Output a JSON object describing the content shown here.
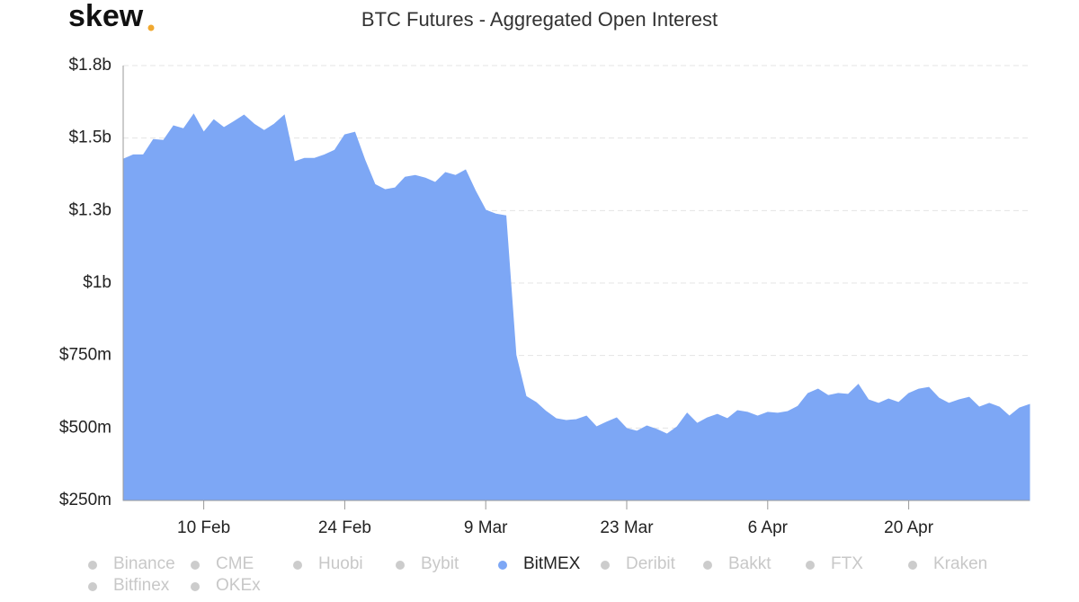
{
  "logo": "skew",
  "chart_data": {
    "type": "area",
    "title": "BTC Futures - Aggregated Open Interest",
    "categories": [
      null,
      null,
      null,
      null,
      null,
      null,
      null,
      null,
      "10 Feb",
      null,
      null,
      null,
      null,
      null,
      null,
      null,
      null,
      null,
      null,
      null,
      null,
      null,
      "24 Feb",
      null,
      null,
      null,
      null,
      null,
      null,
      null,
      null,
      null,
      null,
      null,
      null,
      null,
      "9 Mar",
      null,
      null,
      null,
      null,
      null,
      null,
      null,
      null,
      null,
      null,
      null,
      null,
      null,
      "23 Mar",
      null,
      null,
      null,
      null,
      null,
      null,
      null,
      null,
      null,
      null,
      null,
      null,
      null,
      "6 Apr",
      null,
      null,
      null,
      null,
      null,
      null,
      null,
      null,
      null,
      null,
      null,
      null,
      null,
      "20 Apr",
      null,
      null,
      null,
      null,
      null,
      null,
      null,
      null,
      null,
      null,
      null,
      null
    ],
    "series": [
      {
        "name": "Binance",
        "color": "#cccccc",
        "visible": false
      },
      {
        "name": "CME",
        "color": "#cccccc",
        "visible": false
      },
      {
        "name": "Huobi",
        "color": "#cccccc",
        "visible": false
      },
      {
        "name": "Bybit",
        "color": "#cccccc",
        "visible": false
      },
      {
        "name": "BitMEX",
        "color": "#7da7f5",
        "visible": true,
        "values": [
          1427000000.0,
          1442000000.0,
          1442000000.0,
          1495000000.0,
          1492000000.0,
          1542000000.0,
          1532000000.0,
          1582000000.0,
          1520000000.0,
          1563000000.0,
          1536000000.0,
          1557000000.0,
          1579000000.0,
          1548000000.0,
          1526000000.0,
          1548000000.0,
          1579000000.0,
          1418000000.0,
          1430000000.0,
          1430000000.0,
          1442000000.0,
          1458000000.0,
          1511000000.0,
          1520000000.0,
          1424000000.0,
          1340000000.0,
          1322000000.0,
          1328000000.0,
          1365000000.0,
          1371000000.0,
          1362000000.0,
          1347000000.0,
          1381000000.0,
          1371000000.0,
          1390000000.0,
          1316000000.0,
          1251000000.0,
          1238000000.0,
          1232000000.0,
          752000000.0,
          609000000.0,
          588000000.0,
          557000000.0,
          532000000.0,
          526000000.0,
          529000000.0,
          541000000.0,
          504000000.0,
          520000000.0,
          535000000.0,
          498000000.0,
          489000000.0,
          507000000.0,
          495000000.0,
          479000000.0,
          504000000.0,
          551000000.0,
          516000000.0,
          535000000.0,
          547000000.0,
          532000000.0,
          560000000.0,
          554000000.0,
          541000000.0,
          554000000.0,
          551000000.0,
          557000000.0,
          575000000.0,
          619000000.0,
          634000000.0,
          612000000.0,
          619000000.0,
          616000000.0,
          650000000.0,
          597000000.0,
          585000000.0,
          600000000.0,
          588000000.0,
          619000000.0,
          634000000.0,
          640000000.0,
          603000000.0,
          585000000.0,
          597000000.0,
          606000000.0,
          572000000.0,
          585000000.0,
          572000000.0,
          541000000.0,
          569000000.0,
          581000000.0
        ]
      },
      {
        "name": "Deribit",
        "color": "#cccccc",
        "visible": false
      },
      {
        "name": "Bakkt",
        "color": "#cccccc",
        "visible": false
      },
      {
        "name": "FTX",
        "color": "#cccccc",
        "visible": false
      },
      {
        "name": "Kraken",
        "color": "#cccccc",
        "visible": false
      },
      {
        "name": "Bitfinex",
        "color": "#cccccc",
        "visible": false
      },
      {
        "name": "OKEx",
        "color": "#cccccc",
        "visible": false
      }
    ],
    "ylim": [
      250000000.0,
      1750000000.0
    ],
    "yticks": [
      {
        "value": 250000000.0,
        "label": "$250m"
      },
      {
        "value": 500000000.0,
        "label": "$500m"
      },
      {
        "value": 750000000.0,
        "label": "$750m"
      },
      {
        "value": 1000000000.0,
        "label": "$1b"
      },
      {
        "value": 1250000000.0,
        "label": "$1.3b"
      },
      {
        "value": 1500000000.0,
        "label": "$1.5b"
      },
      {
        "value": 1750000000.0,
        "label": "$1.8b"
      }
    ],
    "grid": true
  }
}
